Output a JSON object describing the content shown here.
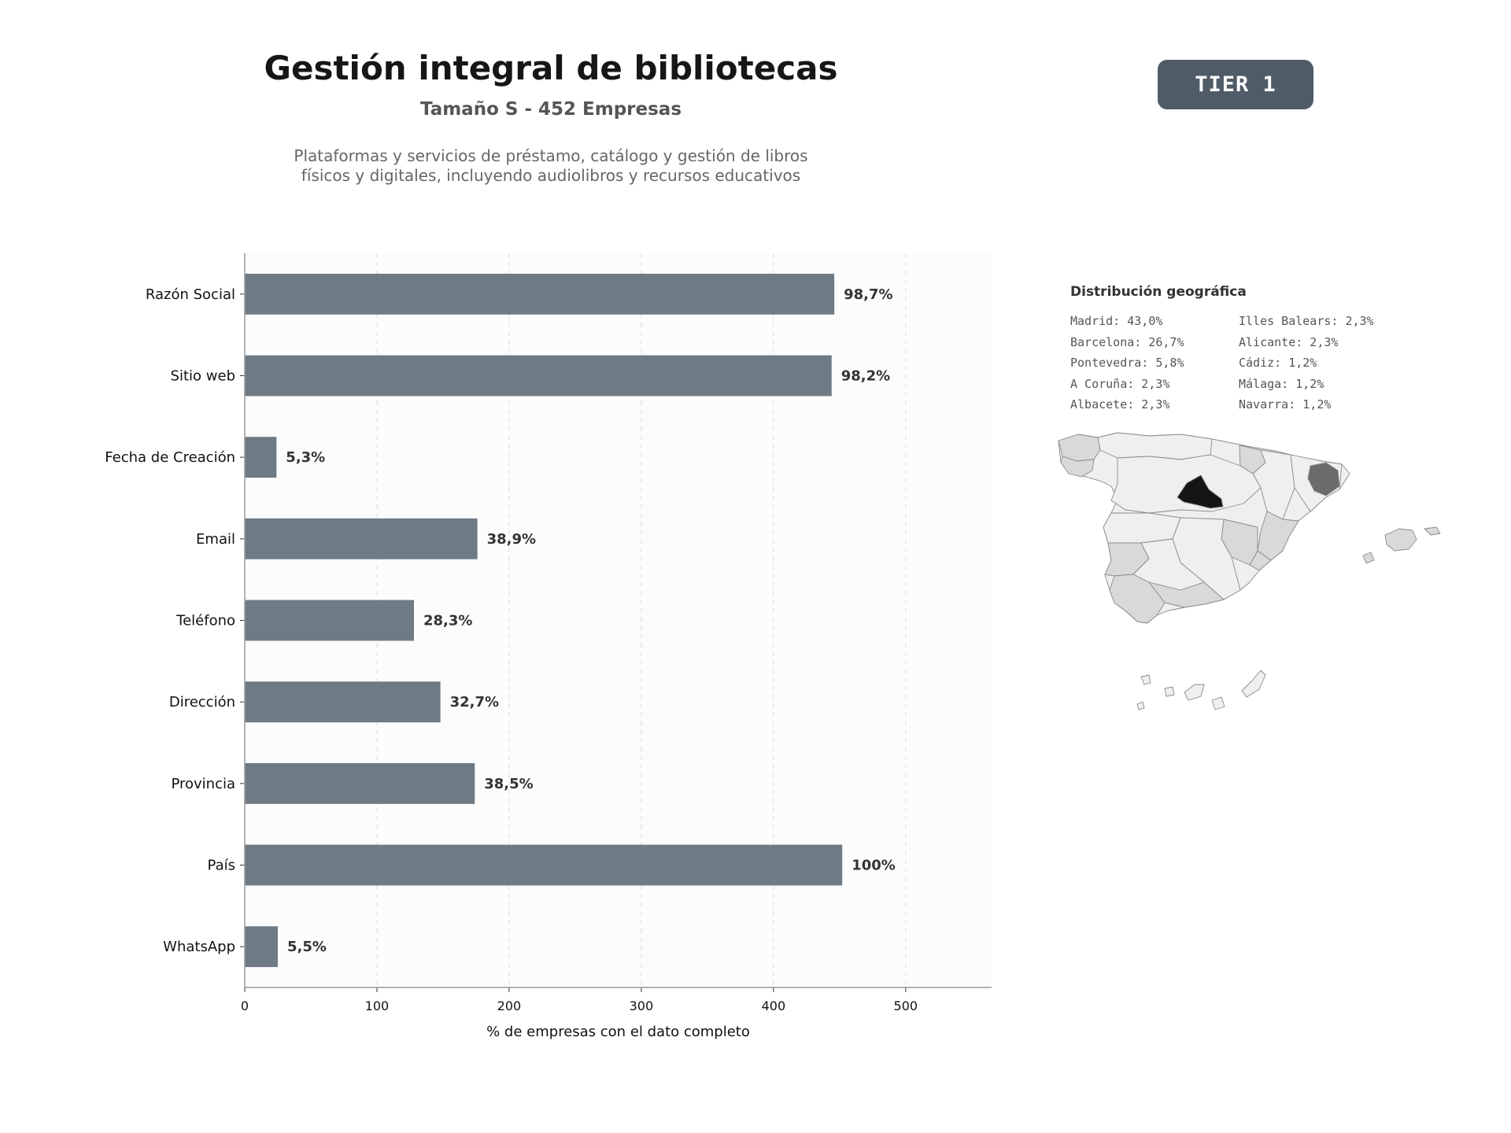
{
  "header": {
    "title": "Gestión integral de bibliotecas",
    "subtitle": "Tamaño S - 452 Empresas",
    "description_line1": "Plataformas y servicios de préstamo, catálogo y gestión de libros",
    "description_line2": "físicos y digitales, incluyendo audiolibros y recursos educativos",
    "tier": "TIER 1"
  },
  "chart_data": {
    "type": "bar",
    "orientation": "horizontal",
    "categories": [
      "Razón Social",
      "Sitio web",
      "Fecha de Creación",
      "Email",
      "Teléfono",
      "Dirección",
      "Provincia",
      "País",
      "WhatsApp"
    ],
    "values": [
      446,
      444,
      24,
      176,
      128,
      148,
      174,
      452,
      25
    ],
    "data_labels": [
      "98,7%",
      "98,2%",
      "5,3%",
      "38,9%",
      "28,3%",
      "32,7%",
      "38,5%",
      "100%",
      "5,5%"
    ],
    "xlabel": "% de empresas con el dato completo",
    "ylabel": "",
    "xlim": [
      0,
      565
    ],
    "xticks": [
      0,
      100,
      200,
      300,
      400,
      500
    ],
    "grid": "vertical dashed",
    "bar_color": "#6e7a84",
    "plot_background": "#fcfcfc"
  },
  "geo": {
    "title": "Distribución geográfica",
    "items": [
      "Madrid: 43,0%",
      "Illes Balears: 2,3%",
      "Barcelona: 26,7%",
      "Alicante: 2,3%",
      "Pontevedra: 5,8%",
      "Cádiz: 1,2%",
      "A Coruña: 2,3%",
      "Málaga: 1,2%",
      "Albacete: 2,3%",
      "Navarra: 1,2%"
    ]
  },
  "map_colors": {
    "madrid": "#151515",
    "barcelona": "#6b6b6b",
    "medium": "#d9d9d9",
    "light": "#efefef",
    "border": "#8a8a8a"
  }
}
